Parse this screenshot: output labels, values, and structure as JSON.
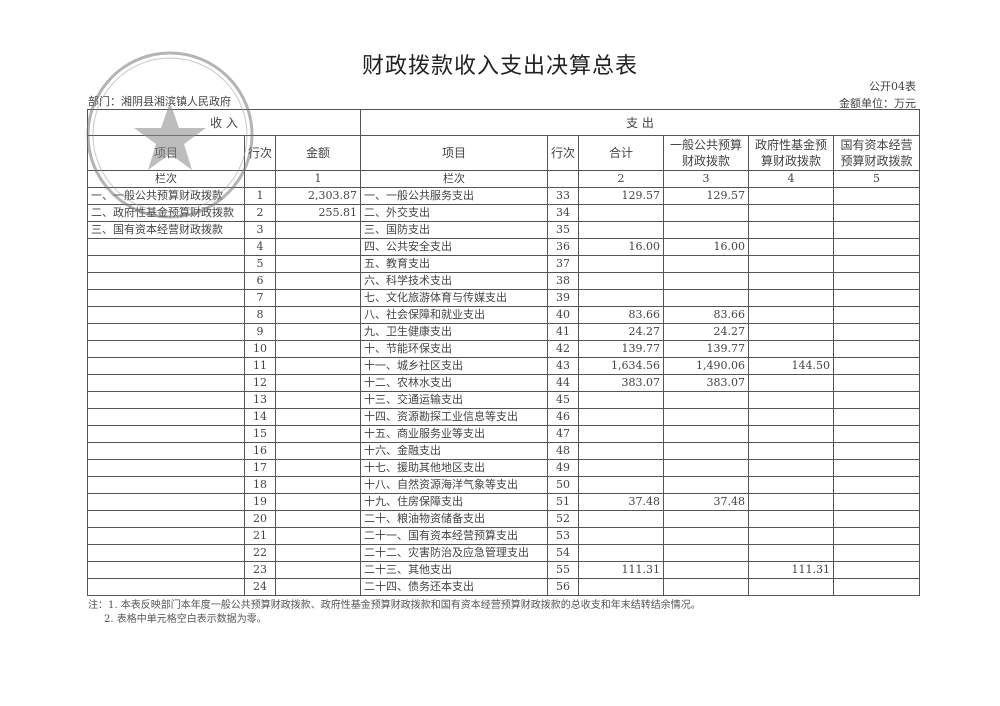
{
  "title": "财政拨款收入支出决算总表",
  "form_no": "公开04表",
  "department": "部门：湘阴县湘滨镇人民政府",
  "unit": "金额单位：万元",
  "header": {
    "income": "收    入",
    "expense": "支    出",
    "item": "项目",
    "row_no": "行次",
    "amount": "金额",
    "total": "合计",
    "general": "一般公共预算财政拨款",
    "gov_fund": "政府性基金预算财政拨款",
    "state_capital": "国有资本经营预算财政拨款",
    "col_label": "栏次",
    "col1": "1",
    "col2": "2",
    "col3": "3",
    "col4": "4",
    "col5": "5"
  },
  "rows": [
    {
      "in_item": "一、一般公共预算财政拨款",
      "in_no": "1",
      "in_amt": "2,303.87",
      "ex_item": "一、一般公共服务支出",
      "ex_no": "33",
      "total": "129.57",
      "general": "129.57",
      "gov_fund": "",
      "state": ""
    },
    {
      "in_item": "二、政府性基金预算财政拨款",
      "in_no": "2",
      "in_amt": "255.81",
      "ex_item": "二、外交支出",
      "ex_no": "34",
      "total": "",
      "general": "",
      "gov_fund": "",
      "state": ""
    },
    {
      "in_item": "三、国有资本经营财政拨款",
      "in_no": "3",
      "in_amt": "",
      "ex_item": "三、国防支出",
      "ex_no": "35",
      "total": "",
      "general": "",
      "gov_fund": "",
      "state": ""
    },
    {
      "in_item": "",
      "in_no": "4",
      "in_amt": "",
      "ex_item": "四、公共安全支出",
      "ex_no": "36",
      "total": "16.00",
      "general": "16.00",
      "gov_fund": "",
      "state": ""
    },
    {
      "in_item": "",
      "in_no": "5",
      "in_amt": "",
      "ex_item": "五、教育支出",
      "ex_no": "37",
      "total": "",
      "general": "",
      "gov_fund": "",
      "state": ""
    },
    {
      "in_item": "",
      "in_no": "6",
      "in_amt": "",
      "ex_item": "六、科学技术支出",
      "ex_no": "38",
      "total": "",
      "general": "",
      "gov_fund": "",
      "state": ""
    },
    {
      "in_item": "",
      "in_no": "7",
      "in_amt": "",
      "ex_item": "七、文化旅游体育与传媒支出",
      "ex_no": "39",
      "total": "",
      "general": "",
      "gov_fund": "",
      "state": ""
    },
    {
      "in_item": "",
      "in_no": "8",
      "in_amt": "",
      "ex_item": "八、社会保障和就业支出",
      "ex_no": "40",
      "total": "83.66",
      "general": "83.66",
      "gov_fund": "",
      "state": ""
    },
    {
      "in_item": "",
      "in_no": "9",
      "in_amt": "",
      "ex_item": "九、卫生健康支出",
      "ex_no": "41",
      "total": "24.27",
      "general": "24.27",
      "gov_fund": "",
      "state": ""
    },
    {
      "in_item": "",
      "in_no": "10",
      "in_amt": "",
      "ex_item": "十、节能环保支出",
      "ex_no": "42",
      "total": "139.77",
      "general": "139.77",
      "gov_fund": "",
      "state": ""
    },
    {
      "in_item": "",
      "in_no": "11",
      "in_amt": "",
      "ex_item": "十一、城乡社区支出",
      "ex_no": "43",
      "total": "1,634.56",
      "general": "1,490.06",
      "gov_fund": "144.50",
      "state": ""
    },
    {
      "in_item": "",
      "in_no": "12",
      "in_amt": "",
      "ex_item": "十二、农林水支出",
      "ex_no": "44",
      "total": "383.07",
      "general": "383.07",
      "gov_fund": "",
      "state": ""
    },
    {
      "in_item": "",
      "in_no": "13",
      "in_amt": "",
      "ex_item": "十三、交通运输支出",
      "ex_no": "45",
      "total": "",
      "general": "",
      "gov_fund": "",
      "state": ""
    },
    {
      "in_item": "",
      "in_no": "14",
      "in_amt": "",
      "ex_item": "十四、资源勘探工业信息等支出",
      "ex_no": "46",
      "total": "",
      "general": "",
      "gov_fund": "",
      "state": ""
    },
    {
      "in_item": "",
      "in_no": "15",
      "in_amt": "",
      "ex_item": "十五、商业服务业等支出",
      "ex_no": "47",
      "total": "",
      "general": "",
      "gov_fund": "",
      "state": ""
    },
    {
      "in_item": "",
      "in_no": "16",
      "in_amt": "",
      "ex_item": "十六、金融支出",
      "ex_no": "48",
      "total": "",
      "general": "",
      "gov_fund": "",
      "state": ""
    },
    {
      "in_item": "",
      "in_no": "17",
      "in_amt": "",
      "ex_item": "十七、援助其他地区支出",
      "ex_no": "49",
      "total": "",
      "general": "",
      "gov_fund": "",
      "state": ""
    },
    {
      "in_item": "",
      "in_no": "18",
      "in_amt": "",
      "ex_item": "十八、自然资源海洋气象等支出",
      "ex_no": "50",
      "total": "",
      "general": "",
      "gov_fund": "",
      "state": ""
    },
    {
      "in_item": "",
      "in_no": "19",
      "in_amt": "",
      "ex_item": "十九、住房保障支出",
      "ex_no": "51",
      "total": "37.48",
      "general": "37.48",
      "gov_fund": "",
      "state": ""
    },
    {
      "in_item": "",
      "in_no": "20",
      "in_amt": "",
      "ex_item": "二十、粮油物资储备支出",
      "ex_no": "52",
      "total": "",
      "general": "",
      "gov_fund": "",
      "state": ""
    },
    {
      "in_item": "",
      "in_no": "21",
      "in_amt": "",
      "ex_item": "二十一、国有资本经营预算支出",
      "ex_no": "53",
      "total": "",
      "general": "",
      "gov_fund": "",
      "state": ""
    },
    {
      "in_item": "",
      "in_no": "22",
      "in_amt": "",
      "ex_item": "二十二、灾害防治及应急管理支出",
      "ex_no": "54",
      "total": "",
      "general": "",
      "gov_fund": "",
      "state": ""
    },
    {
      "in_item": "",
      "in_no": "23",
      "in_amt": "",
      "ex_item": "二十三、其他支出",
      "ex_no": "55",
      "total": "111.31",
      "general": "",
      "gov_fund": "111.31",
      "state": ""
    },
    {
      "in_item": "",
      "in_no": "24",
      "in_amt": "",
      "ex_item": "二十四、债务还本支出",
      "ex_no": "56",
      "total": "",
      "general": "",
      "gov_fund": "",
      "state": ""
    }
  ],
  "notes": [
    "注：1. 本表反映部门本年度一般公共预算财政拨款、政府性基金预算财政拨款和国有资本经营预算财政拨款的总收支和年末结转结余情况。",
    "2. 表格中单元格空白表示数据为零。"
  ]
}
